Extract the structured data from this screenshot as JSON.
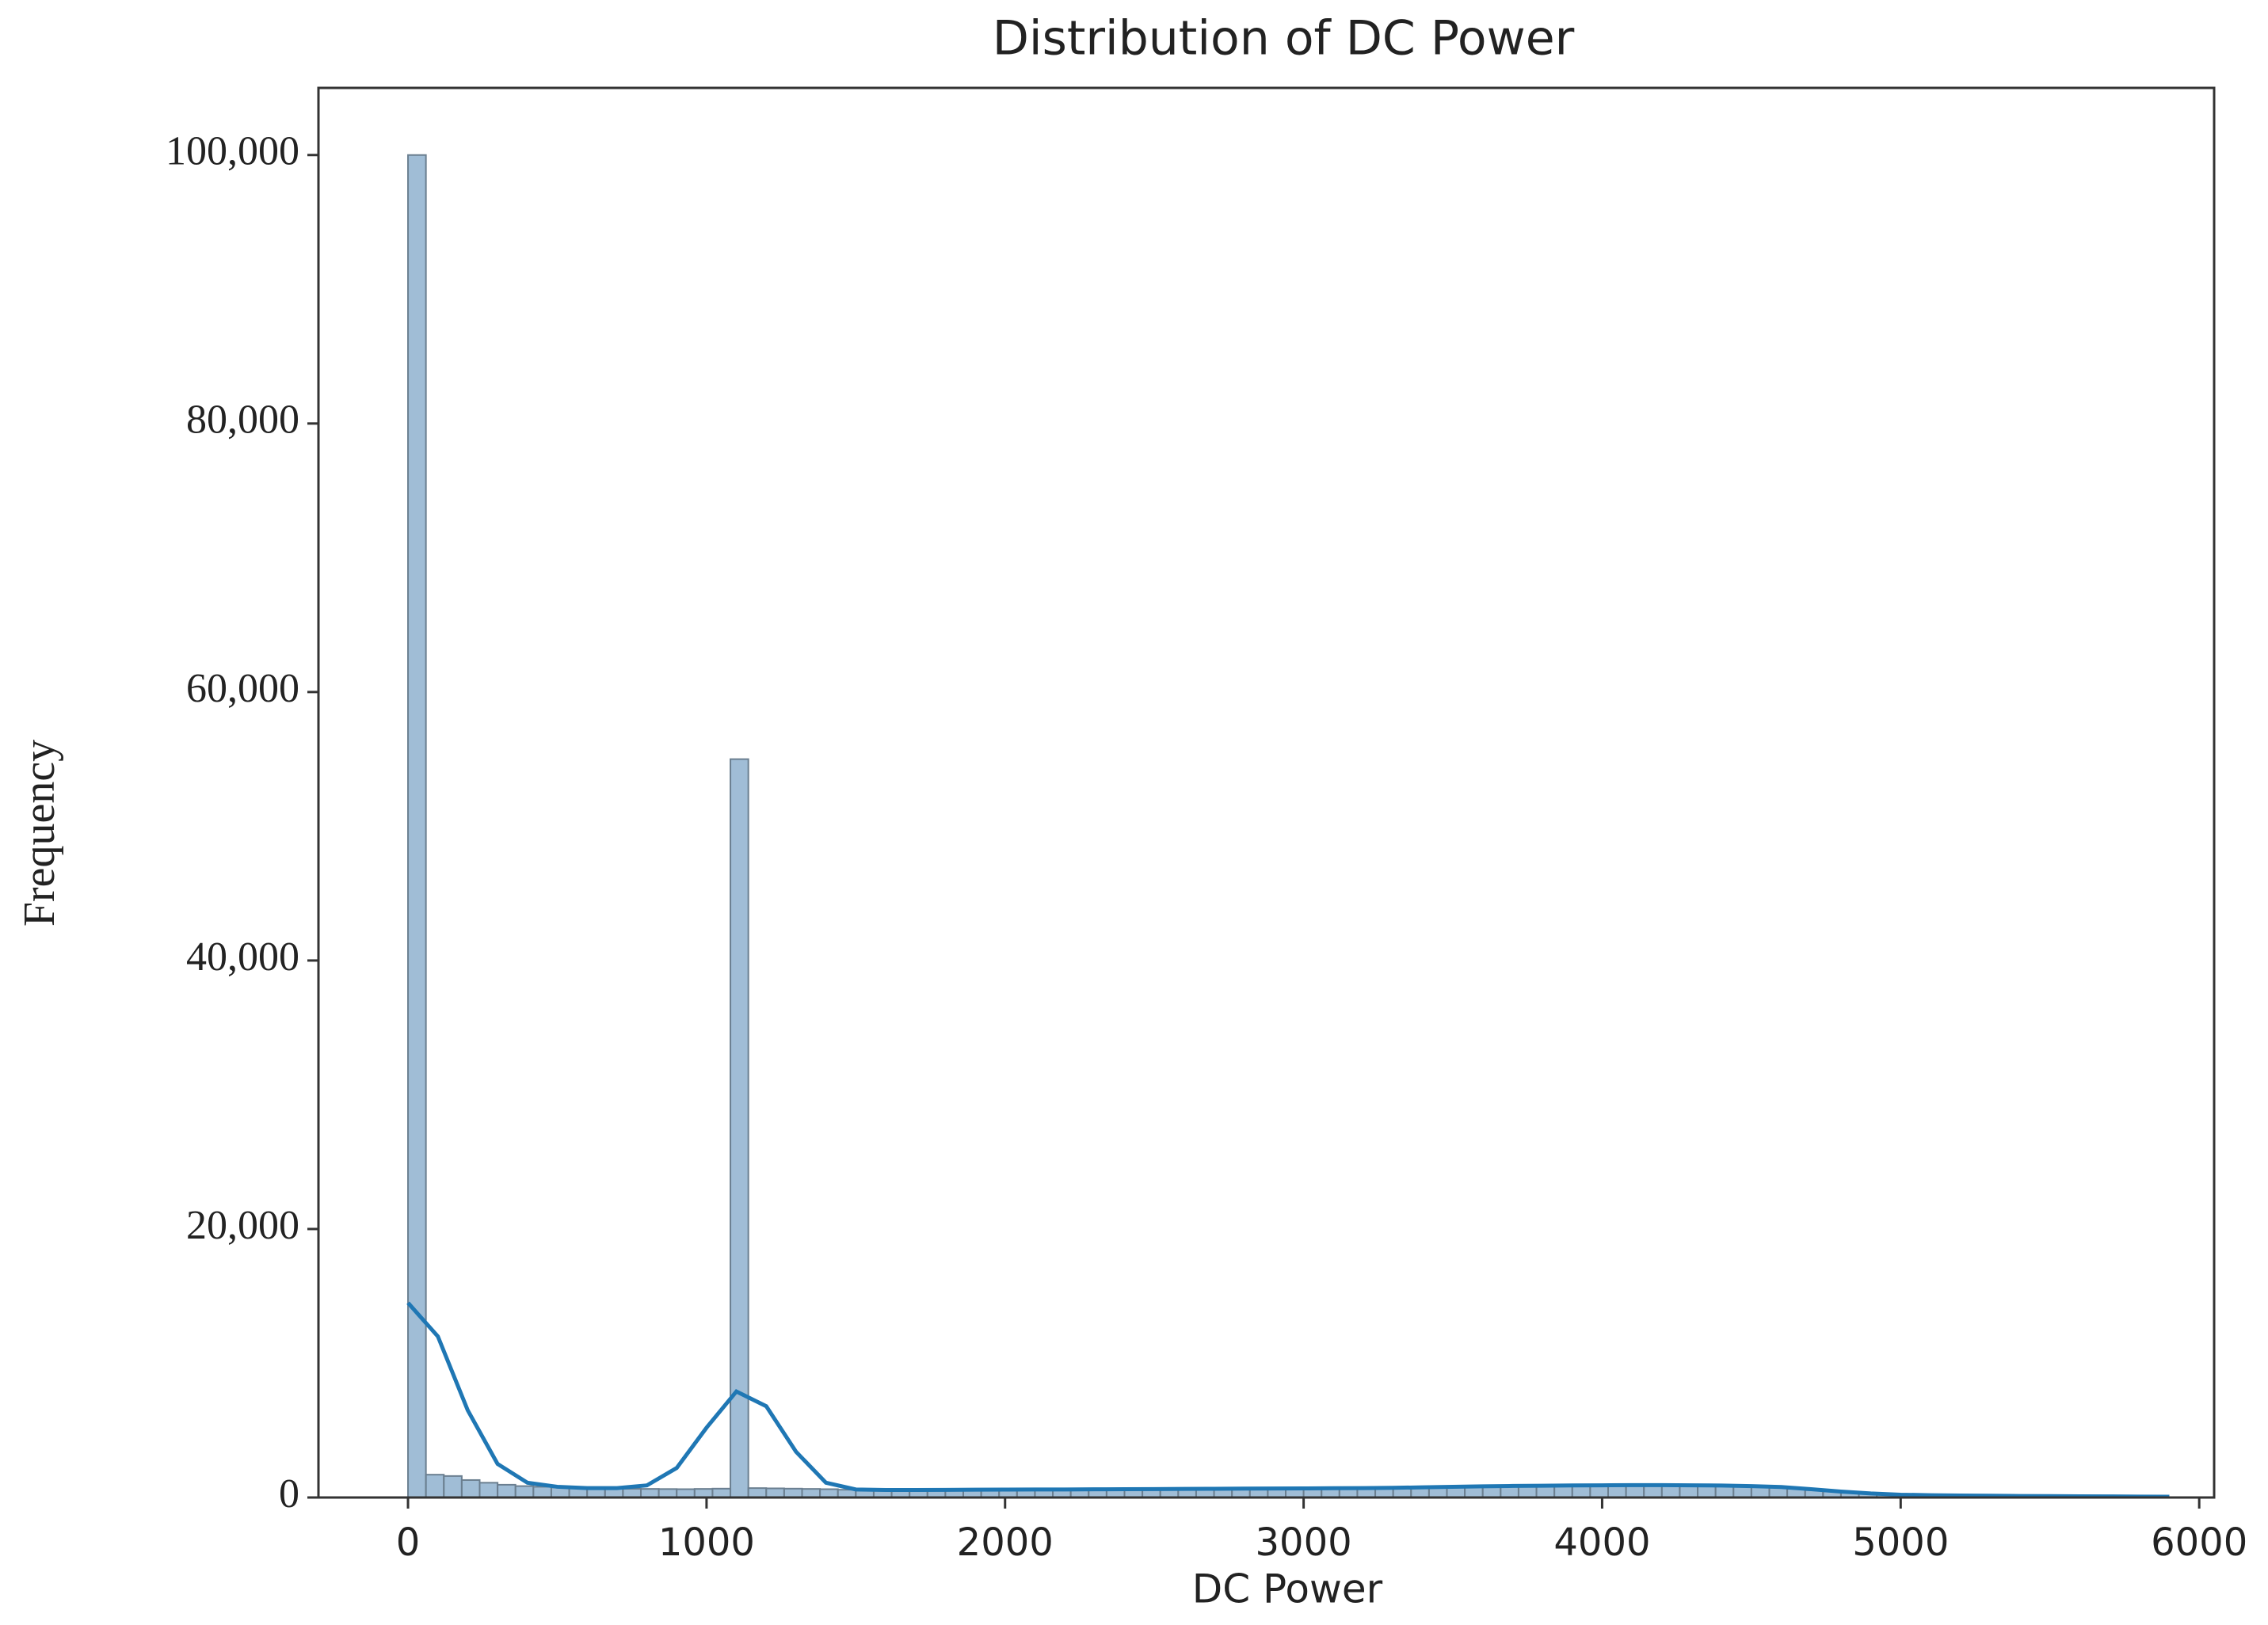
{
  "chart_data": {
    "type": "histogram",
    "title": "Distribution of DC Power",
    "xlabel": "DC Power",
    "ylabel": "Frequency",
    "bins": [
      0,
      60,
      120,
      180,
      240,
      300,
      360,
      420,
      480,
      540,
      600,
      660,
      720,
      780,
      840,
      900,
      960,
      1020,
      1080,
      1140,
      1200,
      1260,
      1320,
      1380,
      1440,
      1500,
      1560,
      1620,
      1680,
      1740,
      1800,
      1860,
      1920,
      1980,
      2040,
      2100,
      2160,
      2220,
      2280,
      2340,
      2400,
      2460,
      2520,
      2580,
      2640,
      2700,
      2760,
      2820,
      2880,
      2940,
      3000,
      3060,
      3120,
      3180,
      3240,
      3300,
      3360,
      3420,
      3480,
      3540,
      3600,
      3660,
      3720,
      3780,
      3840,
      3900,
      3960,
      4020,
      4080,
      4140,
      4200,
      4260,
      4320,
      4380,
      4440,
      4500,
      4560,
      4620,
      4680,
      4740,
      4800,
      4860,
      4920,
      4980,
      5040,
      5100,
      5160,
      5220,
      5280,
      5340,
      5400,
      5460,
      5520,
      5580,
      5640,
      5700,
      5760,
      5820,
      5880,
      5940
    ],
    "counts": [
      100000,
      1700,
      1600,
      1300,
      1100,
      950,
      850,
      800,
      750,
      700,
      680,
      660,
      650,
      640,
      630,
      620,
      640,
      660,
      55000,
      700,
      680,
      660,
      640,
      620,
      580,
      580,
      590,
      590,
      600,
      600,
      600,
      610,
      610,
      610,
      620,
      620,
      620,
      630,
      630,
      630,
      640,
      640,
      640,
      650,
      650,
      650,
      660,
      660,
      660,
      670,
      670,
      680,
      690,
      700,
      720,
      740,
      760,
      800,
      820,
      830,
      840,
      850,
      860,
      870,
      880,
      880,
      890,
      890,
      900,
      900,
      890,
      880,
      870,
      860,
      840,
      820,
      750,
      650,
      550,
      450,
      350,
      280,
      220,
      170,
      130,
      110,
      100,
      90,
      80,
      70,
      60,
      55,
      50,
      45,
      40,
      35,
      30,
      25,
      20
    ],
    "color": "#8fb1cf",
    "edgecolor": "#6b7f90",
    "kde": {
      "x": [
        0,
        100,
        200,
        300,
        400,
        500,
        600,
        700,
        800,
        900,
        1000,
        1100,
        1200,
        1300,
        1400,
        1500,
        1600,
        1700,
        1800,
        1900,
        2000,
        2100,
        2200,
        2300,
        2400,
        2500,
        2600,
        2700,
        2800,
        2900,
        3000,
        3100,
        3200,
        3300,
        3400,
        3500,
        3600,
        3700,
        3800,
        3900,
        4000,
        4100,
        4200,
        4300,
        4400,
        4500,
        4600,
        4700,
        4800,
        4900,
        5000,
        5100,
        5200,
        5300,
        5400,
        5500,
        5600,
        5700,
        5800,
        5900
      ],
      "values": [
        14500,
        12000,
        6500,
        2500,
        1100,
        800,
        700,
        700,
        900,
        2200,
        5200,
        7900,
        6800,
        3400,
        1100,
        600,
        560,
        560,
        570,
        580,
        590,
        600,
        600,
        610,
        620,
        630,
        640,
        650,
        660,
        670,
        680,
        690,
        700,
        720,
        760,
        800,
        830,
        860,
        880,
        900,
        910,
        920,
        920,
        910,
        890,
        850,
        780,
        620,
        440,
        300,
        210,
        170,
        150,
        130,
        110,
        100,
        90,
        80,
        70,
        60
      ],
      "color": "#1f77b4"
    },
    "xlim": [
      -300,
      6050
    ],
    "ylim": [
      0,
      105000
    ],
    "xticks": [
      0,
      1000,
      2000,
      3000,
      4000,
      5000,
      6000
    ],
    "yticks": [
      0,
      {
        "value": 20000,
        "label": "20,000"
      },
      {
        "value": 40000,
        "label": "40,000"
      },
      {
        "value": 60000,
        "label": "60,000"
      },
      {
        "value": 80000,
        "label": "80,000"
      },
      {
        "value": 100000,
        "label": "100,000"
      }
    ]
  }
}
